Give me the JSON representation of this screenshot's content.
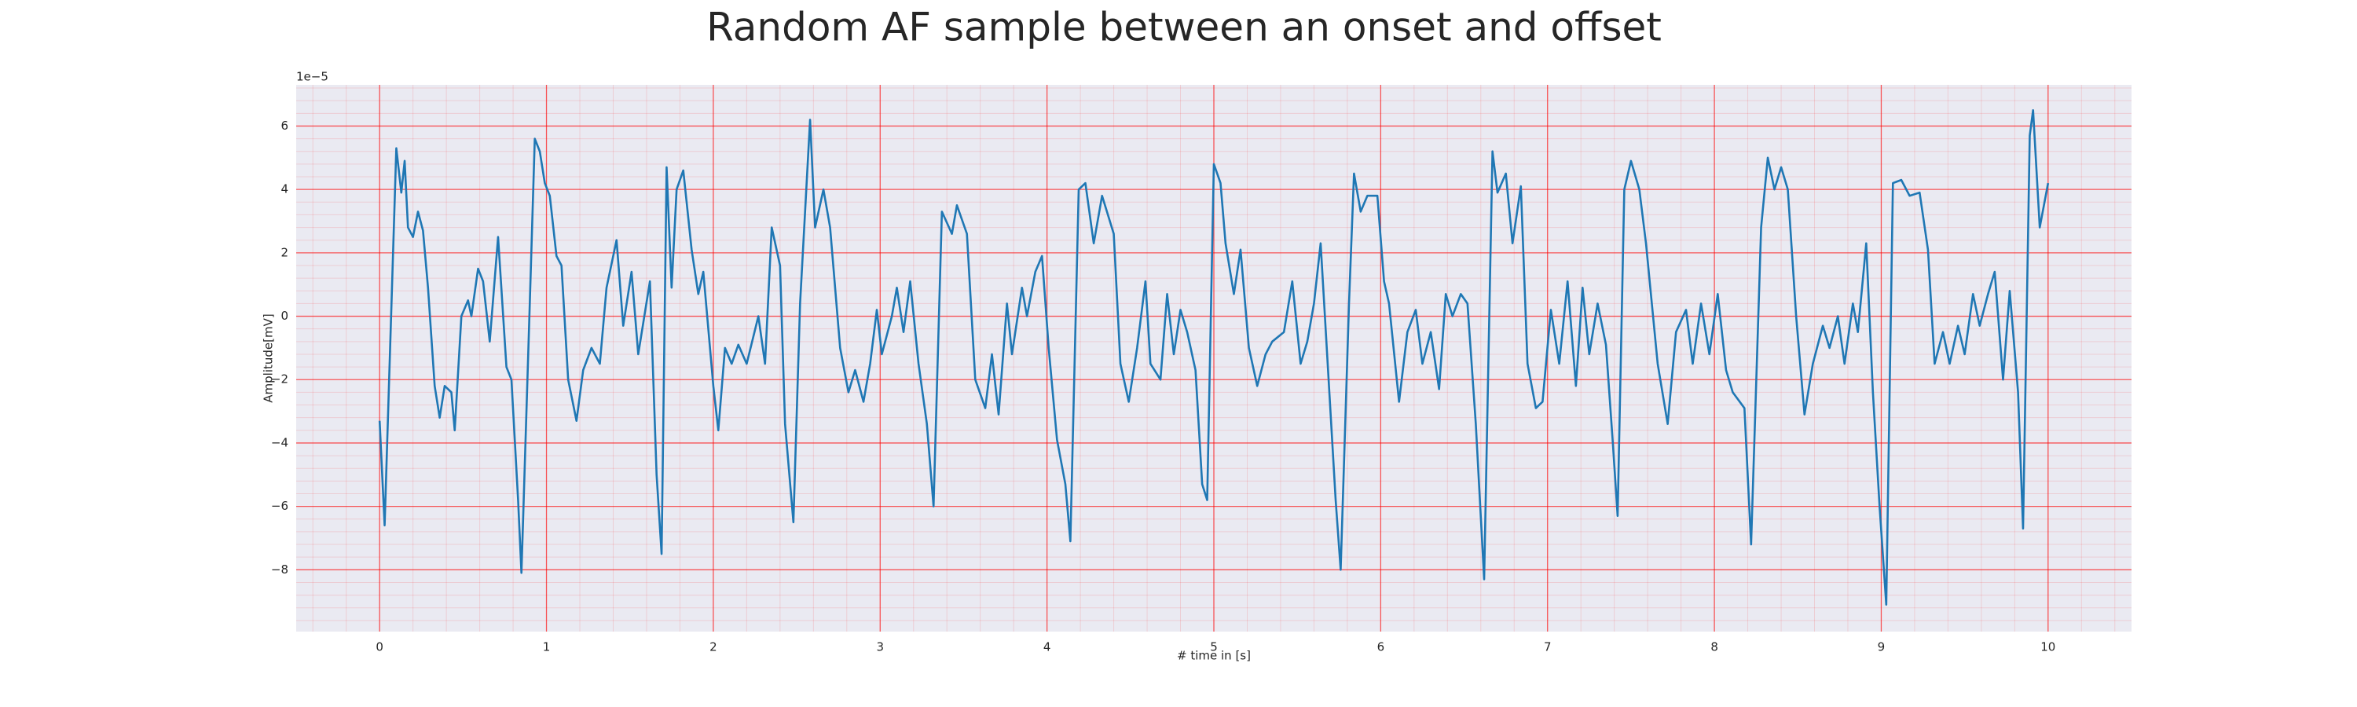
{
  "chart_data": {
    "type": "line",
    "title": "Random AF sample between an onset and offset",
    "x_label": "# time in [s]",
    "y_label": "Amplitude[mV]",
    "y_offset_text": "1e−5",
    "color": "#1f77b4",
    "background": "#eaeaf2",
    "grid": true,
    "grid_color": "#ff0000",
    "minor_grid": true,
    "minor_divisions": 5,
    "xlim": [
      -0.5,
      10.5
    ],
    "ylim": [
      -9.95,
      7.3
    ],
    "xticks": [
      0,
      1,
      2,
      3,
      4,
      5,
      6,
      7,
      8,
      9,
      10
    ],
    "yticks": [
      {
        "value": -8,
        "label": "−8"
      },
      {
        "value": -6,
        "label": "−6"
      },
      {
        "value": -4,
        "label": "−4"
      },
      {
        "value": -2,
        "label": "−2"
      },
      0,
      2,
      4,
      6
    ],
    "x": [
      0.0,
      0.03,
      0.1,
      0.13,
      0.15,
      0.17,
      0.2,
      0.23,
      0.26,
      0.29,
      0.33,
      0.36,
      0.39,
      0.43,
      0.45,
      0.49,
      0.53,
      0.55,
      0.59,
      0.62,
      0.66,
      0.71,
      0.76,
      0.79,
      0.83,
      0.85,
      0.9,
      0.93,
      0.96,
      0.99,
      1.02,
      1.06,
      1.09,
      1.13,
      1.18,
      1.22,
      1.27,
      1.32,
      1.36,
      1.42,
      1.46,
      1.51,
      1.55,
      1.62,
      1.66,
      1.69,
      1.72,
      1.75,
      1.78,
      1.82,
      1.87,
      1.91,
      1.94,
      2.0,
      2.03,
      2.07,
      2.11,
      2.15,
      2.2,
      2.27,
      2.31,
      2.35,
      2.4,
      2.43,
      2.48,
      2.52,
      2.58,
      2.61,
      2.66,
      2.7,
      2.76,
      2.81,
      2.85,
      2.9,
      2.94,
      2.98,
      3.01,
      3.07,
      3.1,
      3.14,
      3.18,
      3.23,
      3.28,
      3.32,
      3.37,
      3.43,
      3.46,
      3.52,
      3.57,
      3.63,
      3.67,
      3.71,
      3.76,
      3.79,
      3.85,
      3.88,
      3.93,
      3.97,
      4.01,
      4.06,
      4.11,
      4.14,
      4.19,
      4.23,
      4.28,
      4.33,
      4.4,
      4.44,
      4.49,
      4.54,
      4.59,
      4.62,
      4.68,
      4.72,
      4.76,
      4.8,
      4.84,
      4.89,
      4.93,
      4.96,
      5.0,
      5.04,
      5.07,
      5.12,
      5.16,
      5.21,
      5.26,
      5.31,
      5.35,
      5.42,
      5.47,
      5.52,
      5.56,
      5.6,
      5.64,
      5.69,
      5.73,
      5.76,
      5.81,
      5.84,
      5.88,
      5.92,
      5.98,
      6.02,
      6.05,
      6.11,
      6.16,
      6.21,
      6.25,
      6.3,
      6.35,
      6.39,
      6.43,
      6.48,
      6.52,
      6.57,
      6.62,
      6.67,
      6.7,
      6.75,
      6.79,
      6.84,
      6.88,
      6.93,
      6.97,
      7.02,
      7.07,
      7.12,
      7.17,
      7.21,
      7.25,
      7.3,
      7.35,
      7.39,
      7.42,
      7.46,
      7.5,
      7.55,
      7.59,
      7.66,
      7.72,
      7.77,
      7.83,
      7.87,
      7.92,
      7.97,
      8.02,
      8.07,
      8.11,
      8.18,
      8.22,
      8.28,
      8.32,
      8.36,
      8.4,
      8.44,
      8.49,
      8.54,
      8.59,
      8.65,
      8.69,
      8.74,
      8.78,
      8.83,
      8.86,
      8.91,
      8.95,
      8.99,
      9.03,
      9.07,
      9.12,
      9.17,
      9.23,
      9.28,
      9.32,
      9.37,
      9.41,
      9.46,
      9.5,
      9.55,
      9.59,
      9.64,
      9.68,
      9.73,
      9.77,
      9.82,
      9.85,
      9.89,
      9.91,
      9.95,
      10.0
    ],
    "values": [
      -3.3,
      -6.6,
      5.3,
      3.9,
      4.9,
      2.8,
      2.5,
      3.3,
      2.7,
      0.9,
      -2.2,
      -3.2,
      -2.2,
      -2.4,
      -3.6,
      0,
      0.5,
      0,
      1.5,
      1.1,
      -0.8,
      2.5,
      -1.6,
      -2.0,
      -5.8,
      -8.1,
      0.4,
      5.6,
      5.2,
      4.2,
      3.8,
      1.9,
      1.6,
      -2.0,
      -3.3,
      -1.7,
      -1.0,
      -1.5,
      0.9,
      2.4,
      -0.3,
      1.4,
      -1.2,
      1.1,
      -5,
      -7.5,
      4.7,
      0.9,
      4,
      4.6,
      2.1,
      0.7,
      1.4,
      -2.2,
      -3.6,
      -1.0,
      -1.5,
      -0.9,
      -1.5,
      0,
      -1.5,
      2.8,
      1.6,
      -3.4,
      -6.5,
      0.4,
      6.2,
      2.8,
      4,
      2.8,
      -1.0,
      -2.4,
      -1.7,
      -2.7,
      -1.5,
      0.2,
      -1.2,
      0,
      0.9,
      -0.5,
      1.1,
      -1.5,
      -3.4,
      -6.0,
      3.3,
      2.6,
      3.5,
      2.6,
      -2.0,
      -2.9,
      -1.2,
      -3.1,
      0.4,
      -1.2,
      0.9,
      0,
      1.4,
      1.9,
      -1.0,
      -3.9,
      -5.3,
      -7.1,
      4,
      4.2,
      2.3,
      3.8,
      2.6,
      -1.5,
      -2.7,
      -1.0,
      1.1,
      -1.5,
      -2.0,
      0.7,
      -1.2,
      0.2,
      -0.5,
      -1.7,
      -5.3,
      -5.8,
      4.8,
      4.2,
      2.3,
      0.7,
      2.1,
      -1.0,
      -2.2,
      -1.2,
      -0.8,
      -0.5,
      1.1,
      -1.5,
      -0.8,
      0.4,
      2.3,
      -2.2,
      -5.8,
      -8.0,
      0.4,
      4.5,
      3.3,
      3.8,
      3.8,
      1.1,
      0.4,
      -2.7,
      -0.5,
      0.2,
      -1.5,
      -0.5,
      -2.3,
      0.7,
      0,
      0.7,
      0.4,
      -3.4,
      -8.3,
      5.2,
      3.9,
      4.5,
      2.3,
      4.1,
      -1.5,
      -2.9,
      -2.7,
      0.2,
      -1.5,
      1.1,
      -2.2,
      0.9,
      -1.2,
      0.4,
      -0.9,
      -3.9,
      -6.3,
      4.0,
      4.9,
      4,
      2.3,
      -1.5,
      -3.4,
      -0.5,
      0.2,
      -1.5,
      0.4,
      -1.2,
      0.7,
      -1.7,
      -2.4,
      -2.9,
      -7.2,
      2.8,
      5.0,
      4.0,
      4.7,
      4,
      0,
      -3.1,
      -1.5,
      -0.3,
      -1.0,
      0,
      -1.5,
      0.4,
      -0.5,
      2.3,
      -2.4,
      -6.0,
      -9.1,
      4.2,
      4.3,
      3.8,
      3.9,
      2.1,
      -1.5,
      -0.5,
      -1.5,
      -0.3,
      -1.2,
      0.7,
      -0.3,
      0.7,
      1.4,
      -2.0,
      0.8,
      -2.4,
      -6.7,
      5.7,
      6.5,
      2.8,
      4.2
    ]
  }
}
